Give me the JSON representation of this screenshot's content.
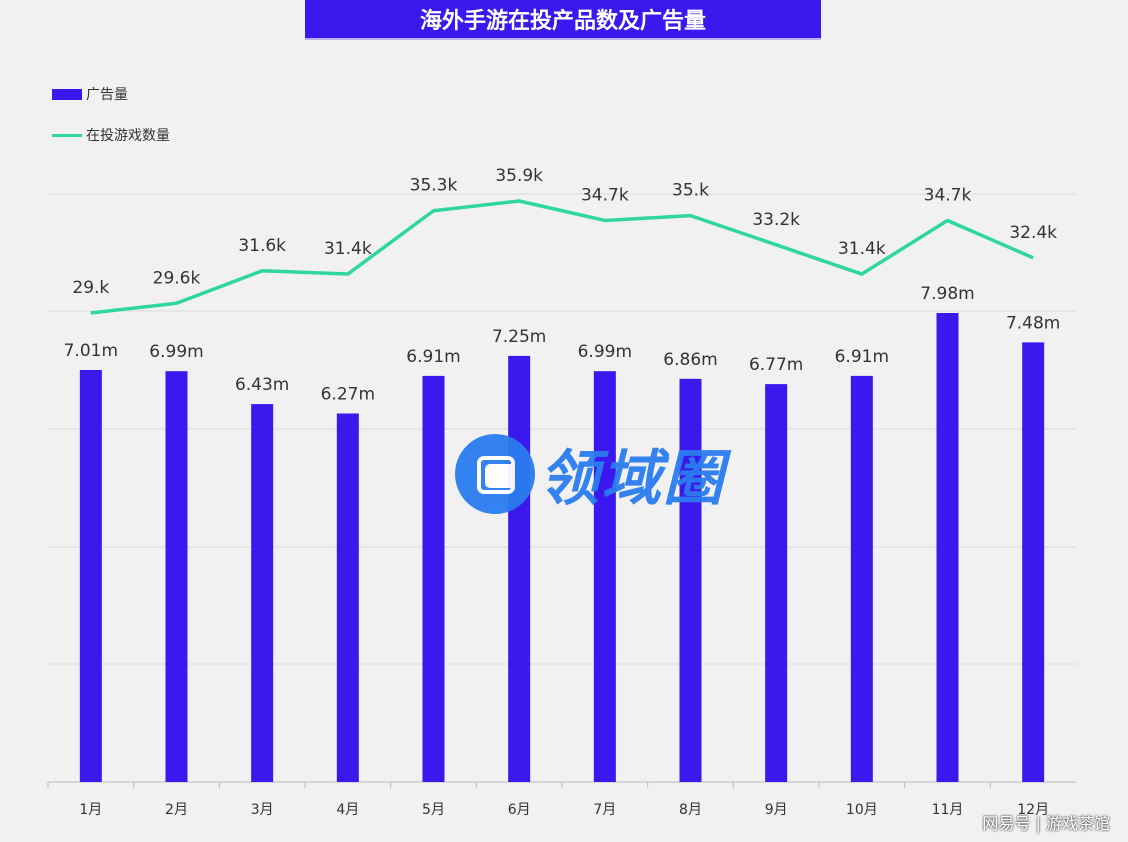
{
  "header": {
    "title": "海外手游在投产品数及广告量"
  },
  "legend": {
    "bar_label": "广告量",
    "line_label": "在投游戏数量"
  },
  "watermark": {
    "text": "领域圈"
  },
  "corner": {
    "source": "网易号 | 游戏茶馆"
  },
  "colors": {
    "bar": "#3a18ee",
    "line": "#2fd6a0",
    "grid": "#dcdcdc"
  },
  "chart_data": {
    "type": "bar",
    "categories": [
      "1月",
      "2月",
      "3月",
      "4月",
      "5月",
      "6月",
      "7月",
      "8月",
      "9月",
      "10月",
      "11月",
      "12月"
    ],
    "series": [
      {
        "name": "广告量",
        "type": "bar",
        "values": [
          7.01,
          6.99,
          6.43,
          6.27,
          6.91,
          7.25,
          6.99,
          6.86,
          6.77,
          6.91,
          7.98,
          7.48
        ],
        "labels": [
          "7.01m",
          "6.99m",
          "6.43m",
          "6.27m",
          "6.91m",
          "7.25m",
          "6.99m",
          "6.86m",
          "6.77m",
          "6.91m",
          "7.98m",
          "7.48m"
        ]
      },
      {
        "name": "在投游戏数量",
        "type": "line",
        "values": [
          29.0,
          29.6,
          31.6,
          31.4,
          35.3,
          35.9,
          34.7,
          35.0,
          33.2,
          31.4,
          34.7,
          32.4
        ],
        "labels": [
          "29.k",
          "29.6k",
          "31.6k",
          "31.4k",
          "35.3k",
          "35.9k",
          "34.7k",
          "35.k",
          "33.2k",
          "31.4k",
          "34.7k",
          "32.4k"
        ]
      }
    ],
    "grid": true,
    "legend_position": "top-left"
  }
}
